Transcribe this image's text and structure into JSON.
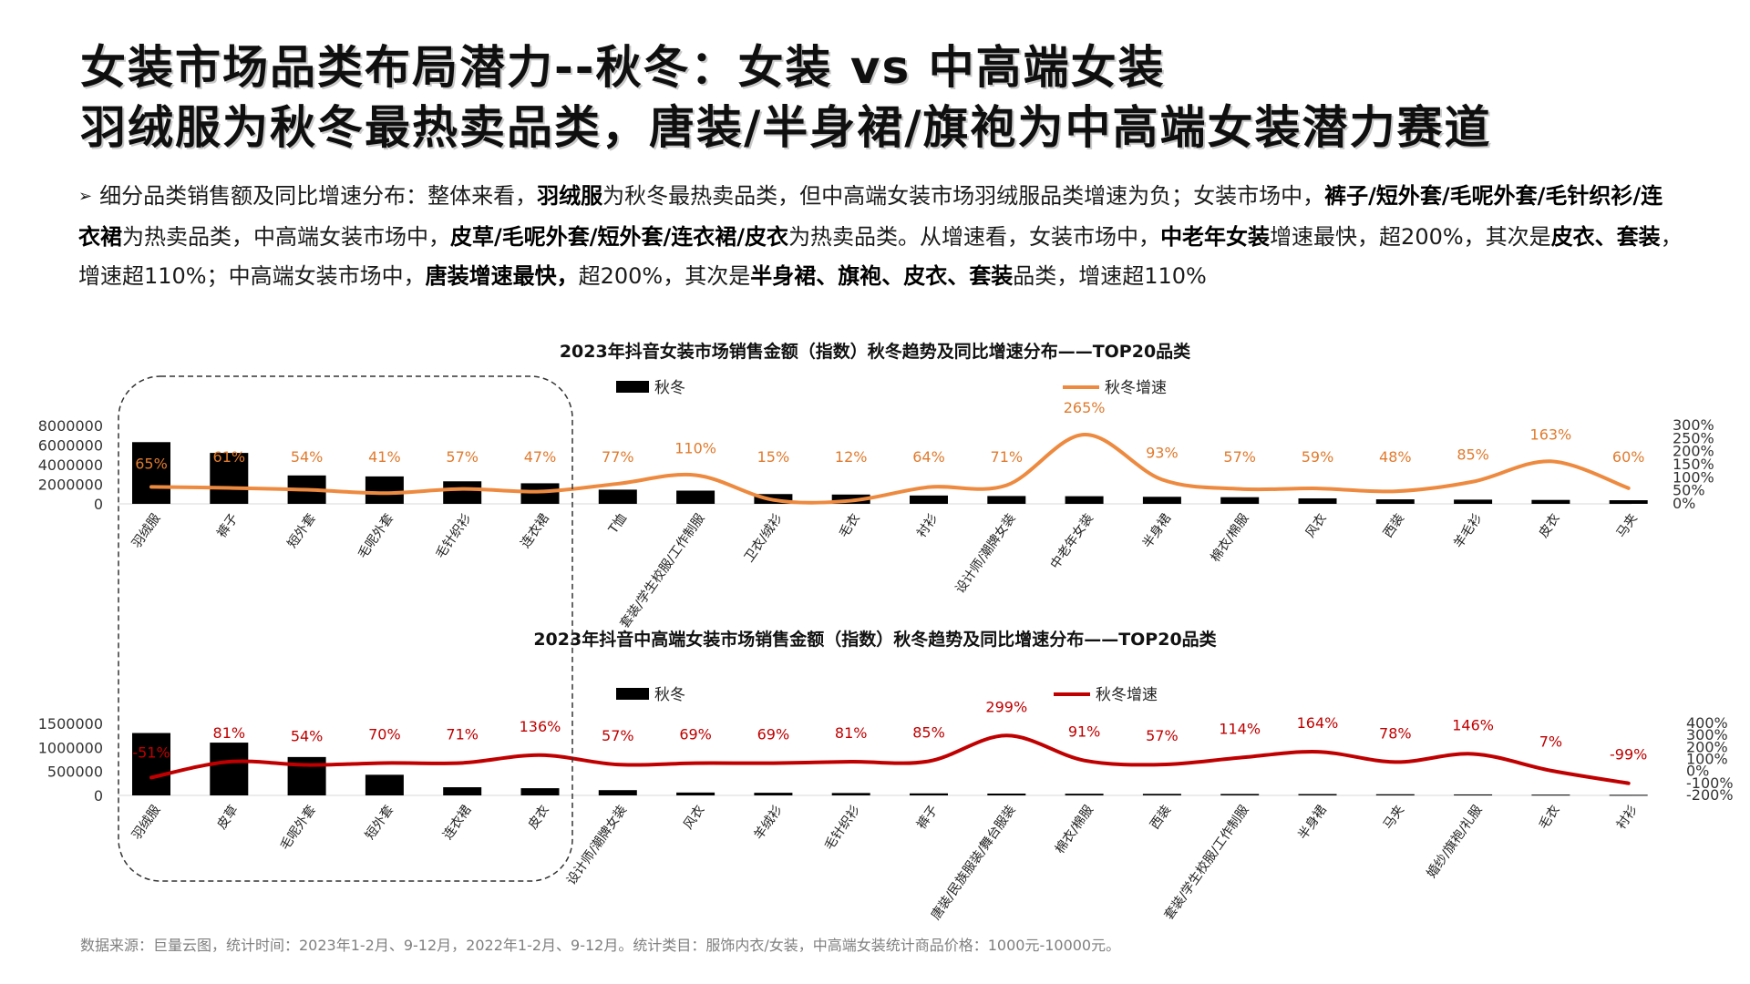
{
  "header": {
    "title_line1": "女装市场品类布局潜力--秋冬：女装 vs 中高端女装",
    "title_line2": "羽绒服为秋冬最热卖品类，唐装/半身裙/旗袍为中高端女装潜力赛道"
  },
  "summary": {
    "bullet": "➢",
    "segments": [
      {
        "text": "细分品类销售额及同比增速分布：整体来看，",
        "bold": false
      },
      {
        "text": "羽绒服",
        "bold": true
      },
      {
        "text": "为秋冬最热卖品类，但中高端女装市场羽绒服品类增速为负；女装市场中，",
        "bold": false
      },
      {
        "text": "裤子/短外套/毛呢外套/毛针织衫/连衣裙",
        "bold": true
      },
      {
        "text": "为热卖品类，中高端女装市场中，",
        "bold": false
      },
      {
        "text": "皮草/毛呢外套/短外套/连衣裙/皮衣",
        "bold": true
      },
      {
        "text": "为热卖品类。从增速看，女装市场中，",
        "bold": false
      },
      {
        "text": "中老年女装",
        "bold": true
      },
      {
        "text": "增速最快，超200%，其次是",
        "bold": false
      },
      {
        "text": "皮衣、套装",
        "bold": true
      },
      {
        "text": "，增速超110%；中高端女装市场中，",
        "bold": false
      },
      {
        "text": "唐装增速最快，",
        "bold": true
      },
      {
        "text": "超200%，其次是",
        "bold": false
      },
      {
        "text": "半身裙、旗袍、皮衣、套装",
        "bold": true
      },
      {
        "text": "品类，增速超110%",
        "bold": false
      }
    ]
  },
  "colors": {
    "bar": "#000000",
    "line_top": "#ED8A3F",
    "line_bottom": "#C00000",
    "label_top": "#E07B2E",
    "label_bottom": "#C00000",
    "text": "#1a1a1a"
  },
  "chart_data": [
    {
      "type": "bar",
      "title": "2023年抖音女装市场销售金额（指数）秋冬趋势及同比增速分布——TOP20品类",
      "categories": [
        "羽绒服",
        "裤子",
        "短外套",
        "毛呢外套",
        "毛针织衫",
        "连衣裙",
        "T恤",
        "套装/学生校服/工作制服",
        "卫衣/绒衫",
        "毛衣",
        "衬衫",
        "设计师/潮牌女装",
        "中老年女装",
        "半身裙",
        "棉衣/棉服",
        "风衣",
        "西装",
        "羊毛衫",
        "皮衣",
        "马夹"
      ],
      "series": [
        {
          "name": "秋冬",
          "type": "bar",
          "axis": "left",
          "values": [
            6300000,
            5200000,
            2900000,
            2800000,
            2300000,
            2100000,
            1450000,
            1350000,
            1000000,
            950000,
            850000,
            800000,
            780000,
            720000,
            680000,
            560000,
            460000,
            430000,
            400000,
            370000
          ]
        },
        {
          "name": "秋冬增速",
          "type": "line",
          "axis": "right",
          "values": [
            65,
            61,
            54,
            41,
            57,
            47,
            77,
            110,
            15,
            12,
            64,
            71,
            265,
            93,
            57,
            59,
            48,
            85,
            163,
            60
          ],
          "labels": [
            "65%",
            "61%",
            "54%",
            "41%",
            "57%",
            "47%",
            "77%",
            "110%",
            "15%",
            "12%",
            "64%",
            "71%",
            "265%",
            "93%",
            "57%",
            "59%",
            "48%",
            "85%",
            "163%",
            "60%"
          ]
        }
      ],
      "left_axis": {
        "ticks": [
          "8000000",
          "6000000",
          "4000000",
          "2000000",
          "0"
        ],
        "range": [
          0,
          8000000
        ]
      },
      "right_axis": {
        "ticks": [
          "300%",
          "250%",
          "200%",
          "150%",
          "100%",
          "50%",
          "0%"
        ],
        "range": [
          0,
          300
        ]
      },
      "legend": "top"
    },
    {
      "type": "bar",
      "title": "2023年抖音中高端女装市场销售金额（指数）秋冬趋势及同比增速分布——TOP20品类",
      "categories": [
        "羽绒服",
        "皮草",
        "毛呢外套",
        "短外套",
        "连衣裙",
        "皮衣",
        "设计师/潮牌女装",
        "风衣",
        "羊绒衫",
        "毛针织衫",
        "裤子",
        "唐装/民族服装/舞台服装",
        "棉衣/棉服",
        "西装",
        "套装/学生校服/工作制服",
        "半身裙",
        "马夹",
        "婚纱/旗袍/礼服",
        "毛衣",
        "衬衫"
      ],
      "series": [
        {
          "name": "秋冬",
          "type": "bar",
          "axis": "left",
          "values": [
            1300000,
            1100000,
            800000,
            430000,
            170000,
            150000,
            110000,
            60000,
            55000,
            50000,
            42000,
            38000,
            35000,
            32000,
            30000,
            28000,
            24000,
            20000,
            16000,
            12000
          ]
        },
        {
          "name": "秋冬增速",
          "type": "line",
          "axis": "right",
          "values": [
            -51,
            81,
            54,
            70,
            71,
            136,
            57,
            69,
            69,
            81,
            85,
            299,
            91,
            57,
            114,
            164,
            78,
            146,
            7,
            -99
          ],
          "labels": [
            "-51%",
            "81%",
            "54%",
            "70%",
            "71%",
            "136%",
            "57%",
            "69%",
            "69%",
            "81%",
            "85%",
            "299%",
            "91%",
            "57%",
            "114%",
            "164%",
            "78%",
            "146%",
            "7%",
            "-99%"
          ]
        }
      ],
      "left_axis": {
        "ticks": [
          "1500000",
          "1000000",
          "500000",
          "0"
        ],
        "range": [
          0,
          1500000
        ]
      },
      "right_axis": {
        "ticks": [
          "400%",
          "300%",
          "200%",
          "100%",
          "0%",
          "-100%",
          "-200%"
        ],
        "range": [
          -200,
          400
        ]
      },
      "legend": "top"
    }
  ],
  "footer": {
    "source": "数据来源：巨量云图，统计时间：2023年1-2月、9-12月，2022年1-2月、9-12月。统计类目：服饰内衣/女装，中高端女装统计商品价格：1000元-10000元。"
  }
}
